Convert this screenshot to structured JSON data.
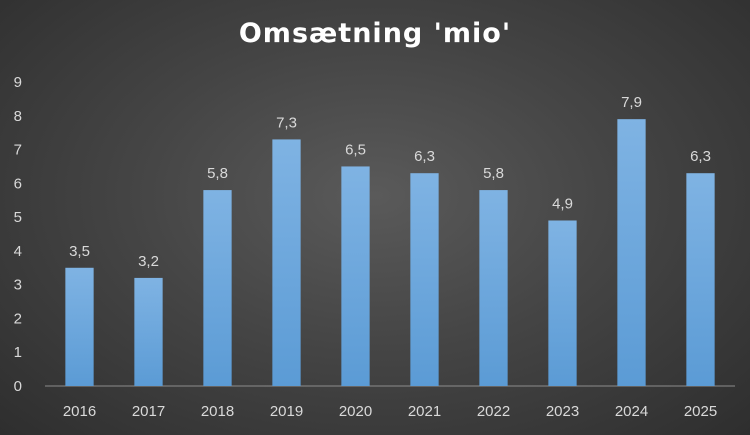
{
  "chart_data": {
    "type": "bar",
    "title": "Omsætning 'mio'",
    "xlabel": "",
    "ylabel": "",
    "categories": [
      "2016",
      "2017",
      "2018",
      "2019",
      "2020",
      "2021",
      "2022",
      "2023",
      "2024",
      "2025"
    ],
    "values": [
      3.5,
      3.2,
      5.8,
      7.3,
      6.5,
      6.3,
      5.8,
      4.9,
      7.9,
      6.3
    ],
    "data_labels": [
      "3,5",
      "3,2",
      "5,8",
      "7,3",
      "6,5",
      "6,3",
      "5,8",
      "4,9",
      "7,9",
      "6,3"
    ],
    "ylim": [
      0,
      9
    ],
    "yticks": [
      "0",
      "1",
      "2",
      "3",
      "4",
      "5",
      "6",
      "7",
      "8",
      "9"
    ],
    "grid": false,
    "legend": "none",
    "colors": {
      "bar": "#5b9bd5",
      "bar_light": "#7fb3e3",
      "text": "#d9d9d9",
      "title": "#ffffff"
    }
  }
}
